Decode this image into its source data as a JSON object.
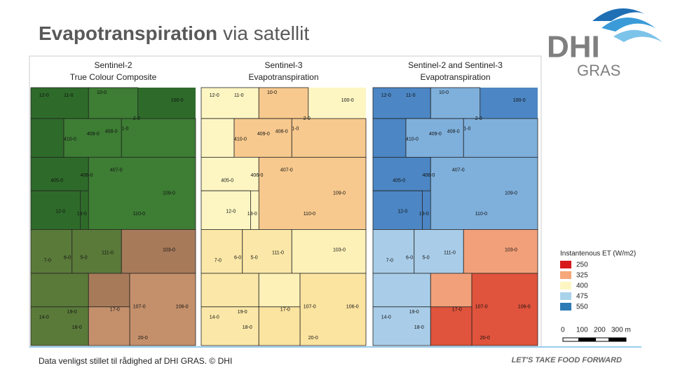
{
  "header": {
    "title_bold": "Evapotranspiration",
    "title_rest": "via satellit",
    "logo_main": "DHI",
    "logo_sub": "GRAS"
  },
  "panels": [
    {
      "title_line1": "Sentinel-2",
      "title_line2": "True Colour Composite"
    },
    {
      "title_line1": "Sentinel-3",
      "title_line2": "Evapotranspiration"
    },
    {
      "title_line1": "Sentinel-2 and Sentinel-3",
      "title_line2": "Evapotranspiration"
    }
  ],
  "field_labels": [
    "12-0",
    "11-0",
    "10-0",
    "100-0",
    "2-0",
    "1-0",
    "410-0",
    "409-0",
    "408-0",
    "406-0",
    "407-0",
    "405-0",
    "109-0",
    "13-0",
    "12-0",
    "110-0",
    "111-0",
    "6-0",
    "5-0",
    "7-0",
    "103-0",
    "107-0",
    "106-0",
    "19-0",
    "17-0",
    "18-0",
    "14-0",
    "20-0"
  ],
  "legend": {
    "title": "Instantenous ET (W/m2)",
    "entries": [
      "250",
      "325",
      "400",
      "475",
      "550"
    ],
    "scale_labels": [
      "0",
      "100",
      "200",
      "300 m"
    ]
  },
  "footer": {
    "credit": "Data venligst stillet til rådighed af DHI GRAS. © DHI",
    "slogan": "LET'S TAKE FOOD FORWARD"
  }
}
